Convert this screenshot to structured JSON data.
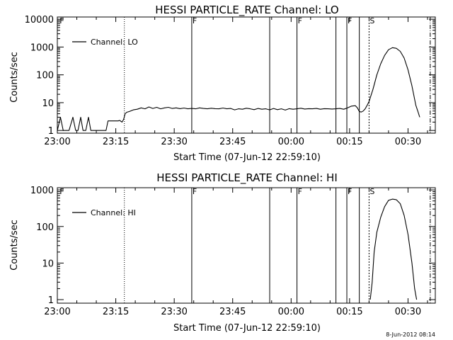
{
  "footer": {
    "timestamp": "8-Jun-2012 08:14"
  },
  "chart_data": [
    {
      "type": "line",
      "title": "HESSI PARTICLE_RATE Channel: LO",
      "xlabel": "Start Time (07-Jun-12 22:59:10)",
      "ylabel": "Counts/sec",
      "yscale": "log",
      "xlim_minutes": [
        0,
        97
      ],
      "ylim": [
        0.8,
        12000
      ],
      "x_ticks": [
        {
          "t": 0,
          "label": "23:00"
        },
        {
          "t": 15,
          "label": "23:15"
        },
        {
          "t": 30,
          "label": "23:30"
        },
        {
          "t": 45,
          "label": "23:45"
        },
        {
          "t": 60,
          "label": "00:00"
        },
        {
          "t": 75,
          "label": "00:15"
        },
        {
          "t": 90,
          "label": "00:30"
        }
      ],
      "y_ticks": [
        {
          "v": 1,
          "label": "1"
        },
        {
          "v": 10,
          "label": "10"
        },
        {
          "v": 100,
          "label": "100"
        },
        {
          "v": 1000,
          "label": "1000"
        },
        {
          "v": 10000,
          "label": "10000"
        }
      ],
      "legend": {
        "label": "Channel: LO",
        "position": "top-left"
      },
      "grid": false,
      "series": [
        {
          "name": "Channel: LO",
          "points": [
            [
              0,
              1
            ],
            [
              0.8,
              3
            ],
            [
              1.5,
              1
            ],
            [
              2,
              1
            ],
            [
              3,
              1
            ],
            [
              4,
              3
            ],
            [
              4.7,
              1
            ],
            [
              5.3,
              1
            ],
            [
              6,
              3
            ],
            [
              6.6,
              1
            ],
            [
              7.3,
              1
            ],
            [
              8,
              3
            ],
            [
              8.6,
              1
            ],
            [
              12.5,
              1
            ],
            [
              13,
              2.2
            ],
            [
              14,
              2.2
            ],
            [
              15,
              2.2
            ],
            [
              15.6,
              2.2
            ],
            [
              16,
              2.3
            ],
            [
              16.6,
              2
            ],
            [
              17,
              2.5
            ],
            [
              17.4,
              4
            ],
            [
              17.8,
              4.5
            ],
            [
              18.5,
              4.8
            ],
            [
              19.5,
              5.5
            ],
            [
              20.5,
              5.8
            ],
            [
              21.5,
              6.5
            ],
            [
              22.5,
              6
            ],
            [
              23.5,
              7
            ],
            [
              24.5,
              6.2
            ],
            [
              25.5,
              6.8
            ],
            [
              26.5,
              6
            ],
            [
              27.5,
              6.5
            ],
            [
              28.5,
              6.8
            ],
            [
              29.5,
              6.2
            ],
            [
              30.5,
              6.5
            ],
            [
              31.5,
              6.1
            ],
            [
              32.5,
              6.4
            ],
            [
              33.5,
              6
            ],
            [
              34.5,
              6.2
            ],
            [
              35.5,
              6
            ],
            [
              36.5,
              6.5
            ],
            [
              37.5,
              6.2
            ],
            [
              38.5,
              6
            ],
            [
              39.5,
              6.3
            ],
            [
              40.5,
              6.1
            ],
            [
              41.5,
              6
            ],
            [
              42.5,
              6.4
            ],
            [
              43.5,
              6
            ],
            [
              44.5,
              6.2
            ],
            [
              45.5,
              5.5
            ],
            [
              46.5,
              6
            ],
            [
              47.5,
              5.8
            ],
            [
              48.5,
              6.3
            ],
            [
              49.5,
              6
            ],
            [
              50.5,
              5.6
            ],
            [
              51.5,
              6.2
            ],
            [
              52.5,
              5.8
            ],
            [
              53.5,
              6
            ],
            [
              54.5,
              5.5
            ],
            [
              55.5,
              6.2
            ],
            [
              56.5,
              5.6
            ],
            [
              57.5,
              6
            ],
            [
              58.5,
              5.4
            ],
            [
              59.5,
              6.1
            ],
            [
              60.5,
              5.8
            ],
            [
              61.5,
              6
            ],
            [
              62.5,
              6.3
            ],
            [
              63.5,
              5.9
            ],
            [
              64.5,
              6.1
            ],
            [
              65.5,
              6
            ],
            [
              66.5,
              6.2
            ],
            [
              67.5,
              5.8
            ],
            [
              68.5,
              6.1
            ],
            [
              69.5,
              6
            ],
            [
              70.5,
              5.9
            ],
            [
              71.5,
              6
            ],
            [
              72.5,
              6.2
            ],
            [
              73.5,
              5.8
            ],
            [
              74.5,
              6.5
            ],
            [
              75.5,
              7.5
            ],
            [
              76.5,
              7.8
            ],
            [
              77,
              6.5
            ],
            [
              77.5,
              4.8
            ],
            [
              78,
              4.6
            ],
            [
              78.5,
              5
            ],
            [
              79,
              6
            ],
            [
              79.5,
              8
            ],
            [
              80,
              11
            ],
            [
              81,
              30
            ],
            [
              82,
              100
            ],
            [
              83,
              250
            ],
            [
              84,
              500
            ],
            [
              85,
              800
            ],
            [
              86,
              950
            ],
            [
              87,
              900
            ],
            [
              88,
              700
            ],
            [
              89,
              400
            ],
            [
              90,
              150
            ],
            [
              91,
              40
            ],
            [
              92,
              8
            ],
            [
              92.5,
              5
            ],
            [
              93,
              3
            ]
          ]
        }
      ]
    },
    {
      "type": "line",
      "title": "HESSI PARTICLE_RATE Channel: HI",
      "xlabel": "Start Time (07-Jun-12 22:59:10)",
      "ylabel": "Counts/sec",
      "yscale": "log",
      "xlim_minutes": [
        0,
        97
      ],
      "ylim": [
        0.8,
        1150
      ],
      "x_ticks": [
        {
          "t": 0,
          "label": "23:00"
        },
        {
          "t": 15,
          "label": "23:15"
        },
        {
          "t": 30,
          "label": "23:30"
        },
        {
          "t": 45,
          "label": "23:45"
        },
        {
          "t": 60,
          "label": "00:00"
        },
        {
          "t": 75,
          "label": "00:15"
        },
        {
          "t": 90,
          "label": "00:30"
        }
      ],
      "y_ticks": [
        {
          "v": 1,
          "label": "1"
        },
        {
          "v": 10,
          "label": "10"
        },
        {
          "v": 100,
          "label": "100"
        },
        {
          "v": 1000,
          "label": "1000"
        }
      ],
      "legend": {
        "label": "Channel: HI",
        "position": "top-left"
      },
      "grid": false,
      "series": [
        {
          "name": "Channel: HI",
          "points": [
            [
              80.3,
              1
            ],
            [
              80.8,
              3
            ],
            [
              81.3,
              20
            ],
            [
              82,
              70
            ],
            [
              83,
              180
            ],
            [
              84,
              350
            ],
            [
              85,
              520
            ],
            [
              86,
              560
            ],
            [
              87,
              540
            ],
            [
              88,
              420
            ],
            [
              89,
              200
            ],
            [
              90,
              60
            ],
            [
              91,
              10
            ],
            [
              91.7,
              2
            ],
            [
              92.2,
              1
            ]
          ]
        }
      ]
    }
  ],
  "markers": {
    "dotted": [
      17.2
    ],
    "solid": [
      34.5,
      54.5,
      61.5,
      71.5,
      74.3,
      77.5
    ],
    "dashed": [
      80
    ],
    "dash_dot": [
      95.7
    ],
    "letters": [
      {
        "t": 0.4,
        "text": "F"
      },
      {
        "t": 34.5,
        "text": "F"
      },
      {
        "t": 61.5,
        "text": "F"
      },
      {
        "t": 74.3,
        "text": "F"
      },
      {
        "t": 80,
        "text": "S"
      }
    ]
  }
}
